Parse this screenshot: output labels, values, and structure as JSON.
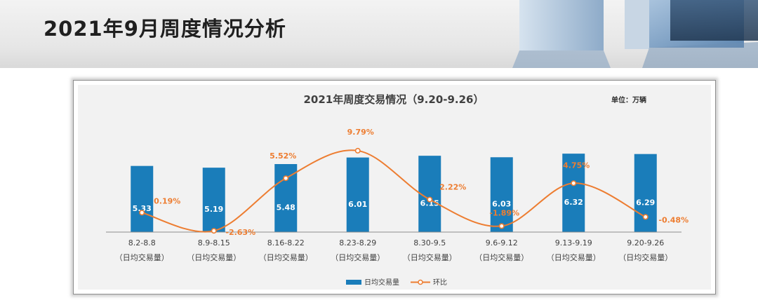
{
  "page": {
    "title": "2021年9月周度情况分析"
  },
  "chart_data": {
    "type": "bar",
    "title": "2021年周度交易情况（9.20-9.26）",
    "unit_label": "单位：万辆",
    "categories": [
      "8.2-8.8",
      "8.9-8.15",
      "8.16-8.22",
      "8.23-8.29",
      "8.30-9.5",
      "9.6-9.12",
      "9.13-9.19",
      "9.20-9.26"
    ],
    "category_sublabel": "（日均交易量）",
    "series": [
      {
        "name": "日均交易量",
        "type": "bar",
        "color": "#1a7dba",
        "values": [
          5.33,
          5.19,
          5.48,
          6.01,
          6.15,
          6.03,
          6.32,
          6.29
        ]
      },
      {
        "name": "环比",
        "type": "line",
        "color": "#ed7d31",
        "values": [
          0.19,
          -2.63,
          5.52,
          9.79,
          2.22,
          -1.89,
          4.75,
          -0.48
        ],
        "labels": [
          "0.19%",
          "-2.63%",
          "5.52%",
          "9.79%",
          "2.22%",
          "-1.89%",
          "4.75%",
          "-0.48%"
        ]
      }
    ],
    "legend_position": "bottom",
    "grid": false
  }
}
